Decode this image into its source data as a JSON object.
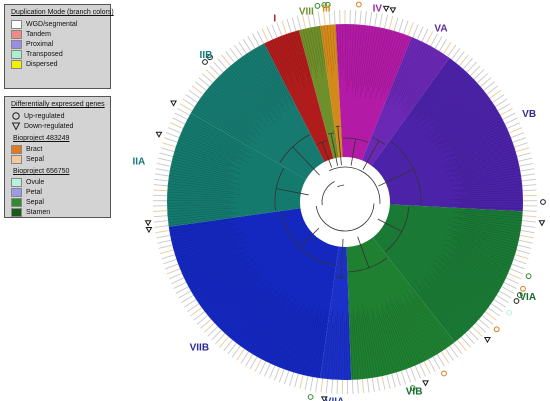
{
  "duplication_legend": {
    "title": "Duplication Mode (branch colors)",
    "items": [
      {
        "label": "WGD/segmental",
        "color": "#ffffff"
      },
      {
        "label": "Tandem",
        "color": "#f08a8a"
      },
      {
        "label": "Proximal",
        "color": "#9b8de0"
      },
      {
        "label": "Transposed",
        "color": "#a8f0d0"
      },
      {
        "label": "Dispersed",
        "color": "#f2f200"
      }
    ]
  },
  "de_legend": {
    "title": "Differentially expressed genes",
    "up_label": "Up-regulated",
    "down_label": "Down-regulated",
    "projects": [
      {
        "name": "Bioproject 483249",
        "items": [
          {
            "label": "Bract",
            "color": "#e07b1f"
          },
          {
            "label": "Sepal",
            "color": "#f3c89c"
          }
        ]
      },
      {
        "name": "Bioproject 656750",
        "items": [
          {
            "label": "Ovule",
            "color": "#b8f0e2"
          },
          {
            "label": "Petal",
            "color": "#9a9ae6"
          },
          {
            "label": "Sepal",
            "color": "#2e8b2e"
          },
          {
            "label": "Stamen",
            "color": "#1a5a1a"
          }
        ]
      }
    ]
  },
  "clades": [
    {
      "label": "I",
      "start": -27,
      "end": -15,
      "color": "#b01c1c",
      "label_color": "#b01c1c"
    },
    {
      "label": "VIII",
      "start": -15,
      "end": -8,
      "color": "#6f8f2a",
      "label_color": "#6f8f2a"
    },
    {
      "label": "III",
      "start": -8,
      "end": -3,
      "color": "#d48a1a",
      "label_color": "#d48a1a"
    },
    {
      "label": "IV",
      "start": -3,
      "end": 22,
      "color": "#b31aa6",
      "label_color": "#9a2aa0"
    },
    {
      "label": "VA",
      "start": 22,
      "end": 36,
      "color": "#6a28b4",
      "label_color": "#5a2aa0"
    },
    {
      "label": "VB",
      "start": 36,
      "end": 93,
      "color": "#4b22a8",
      "label_color": "#3b2a90"
    },
    {
      "label": "VIA",
      "start": 93,
      "end": 142,
      "color": "#1a7a35",
      "label_color": "#1a6a30"
    },
    {
      "label": "VIB",
      "start": 142,
      "end": 178,
      "color": "#1f8032",
      "label_color": "#1a6a30"
    },
    {
      "label": "VIIA",
      "start": 178,
      "end": 188,
      "color": "#1a30c8",
      "label_color": "#2a3aa8"
    },
    {
      "label": "VIIB",
      "start": 188,
      "end": 262,
      "color": "#1428c0",
      "label_color": "#2a2a9a"
    },
    {
      "label": "IIA",
      "start": 262,
      "end": 300,
      "color": "#157a6e",
      "label_color": "#1a7a7a"
    },
    {
      "label": "IIB",
      "start": 300,
      "end": 333,
      "color": "#167a70",
      "label_color": "#1a7a7a"
    }
  ]
}
